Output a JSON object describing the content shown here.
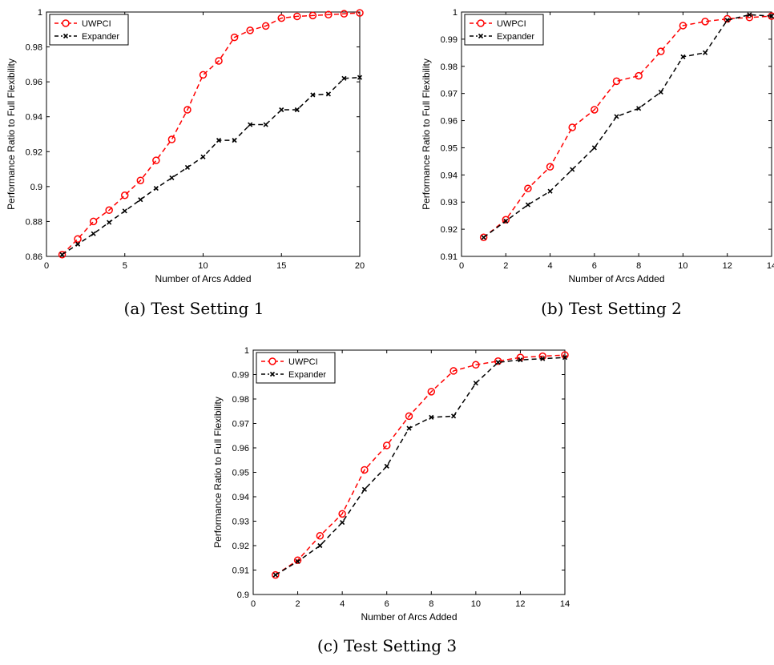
{
  "chart_data": [
    {
      "type": "line",
      "caption": "(a) Test Setting 1",
      "xlabel": "Number of Arcs Added",
      "ylabel": "Performance Ratio to Full Flexibility",
      "xlim": [
        0,
        20
      ],
      "ylim": [
        0.86,
        1.0
      ],
      "xticks": [
        0,
        5,
        10,
        15,
        20
      ],
      "yticks": [
        0.86,
        0.88,
        0.9,
        0.92,
        0.94,
        0.96,
        0.98,
        1.0
      ],
      "xtick_labels": [
        "0",
        "5",
        "10",
        "15",
        "20"
      ],
      "ytick_labels": [
        "0.86",
        "0.88",
        "0.9",
        "0.92",
        "0.94",
        "0.96",
        "0.98",
        "1"
      ],
      "legend_position": "top-left",
      "grid": false,
      "series": [
        {
          "name": "UWPCI",
          "color": "#ff0000",
          "marker": "circle",
          "line": "dashed",
          "x": [
            1,
            2,
            3,
            4,
            5,
            6,
            7,
            8,
            9,
            10,
            11,
            12,
            13,
            14,
            15,
            16,
            17,
            18,
            19,
            20
          ],
          "y": [
            0.861,
            0.87,
            0.88,
            0.8865,
            0.895,
            0.9035,
            0.915,
            0.927,
            0.944,
            0.964,
            0.972,
            0.9855,
            0.9895,
            0.992,
            0.9965,
            0.9975,
            0.998,
            0.9985,
            0.999,
            0.9995
          ]
        },
        {
          "name": "Expander",
          "color": "#000000",
          "marker": "x",
          "line": "dashed",
          "x": [
            1,
            2,
            3,
            4,
            5,
            6,
            7,
            8,
            9,
            10,
            11,
            12,
            13,
            14,
            15,
            16,
            17,
            18,
            19,
            20
          ],
          "y": [
            0.861,
            0.867,
            0.873,
            0.8795,
            0.886,
            0.8925,
            0.899,
            0.905,
            0.911,
            0.917,
            0.9265,
            0.9265,
            0.9355,
            0.9355,
            0.944,
            0.944,
            0.9525,
            0.953,
            0.962,
            0.9625
          ]
        }
      ]
    },
    {
      "type": "line",
      "caption": "(b) Test Setting 2",
      "xlabel": "Number of Arcs Added",
      "ylabel": "Performance Ratio to Full Flexibility",
      "xlim": [
        0,
        14
      ],
      "ylim": [
        0.91,
        1.0
      ],
      "xticks": [
        0,
        2,
        4,
        6,
        8,
        10,
        12,
        14
      ],
      "yticks": [
        0.91,
        0.92,
        0.93,
        0.94,
        0.95,
        0.96,
        0.97,
        0.98,
        0.99,
        1.0
      ],
      "xtick_labels": [
        "0",
        "2",
        "4",
        "6",
        "8",
        "10",
        "12",
        "14"
      ],
      "ytick_labels": [
        "0.91",
        "0.92",
        "0.93",
        "0.94",
        "0.95",
        "0.96",
        "0.97",
        "0.98",
        "0.99",
        "1"
      ],
      "legend_position": "top-left",
      "grid": false,
      "series": [
        {
          "name": "UWPCI",
          "color": "#ff0000",
          "marker": "circle",
          "line": "dashed",
          "x": [
            1,
            2,
            3,
            4,
            5,
            6,
            7,
            8,
            9,
            10,
            11,
            12,
            13,
            14
          ],
          "y": [
            0.917,
            0.9235,
            0.935,
            0.943,
            0.9575,
            0.964,
            0.9745,
            0.9765,
            0.9855,
            0.995,
            0.9965,
            0.9975,
            0.998,
            0.9985
          ]
        },
        {
          "name": "Expander",
          "color": "#000000",
          "marker": "x",
          "line": "dashed",
          "x": [
            1,
            2,
            3,
            4,
            5,
            6,
            7,
            8,
            9,
            10,
            11,
            12,
            13,
            14
          ],
          "y": [
            0.917,
            0.923,
            0.929,
            0.934,
            0.942,
            0.95,
            0.9615,
            0.9645,
            0.9705,
            0.9835,
            0.985,
            0.997,
            0.999,
            0.9985
          ]
        }
      ]
    },
    {
      "type": "line",
      "caption": "(c) Test Setting 3",
      "xlabel": "Number of Arcs Added",
      "ylabel": "Performance Ratio to Full Flexibility",
      "xlim": [
        0,
        14
      ],
      "ylim": [
        0.9,
        1.0
      ],
      "xticks": [
        0,
        2,
        4,
        6,
        8,
        10,
        12,
        14
      ],
      "yticks": [
        0.9,
        0.91,
        0.92,
        0.93,
        0.94,
        0.95,
        0.96,
        0.97,
        0.98,
        0.99,
        1.0
      ],
      "xtick_labels": [
        "0",
        "2",
        "4",
        "6",
        "8",
        "10",
        "12",
        "14"
      ],
      "ytick_labels": [
        "0.9",
        "0.91",
        "0.92",
        "0.93",
        "0.94",
        "0.95",
        "0.96",
        "0.97",
        "0.98",
        "0.99",
        "1"
      ],
      "legend_position": "top-left",
      "grid": false,
      "series": [
        {
          "name": "UWPCI",
          "color": "#ff0000",
          "marker": "circle",
          "line": "dashed",
          "x": [
            1,
            2,
            3,
            4,
            5,
            6,
            7,
            8,
            9,
            10,
            11,
            12,
            13,
            14
          ],
          "y": [
            0.908,
            0.914,
            0.924,
            0.933,
            0.951,
            0.961,
            0.973,
            0.983,
            0.9915,
            0.994,
            0.9955,
            0.997,
            0.9975,
            0.998
          ]
        },
        {
          "name": "Expander",
          "color": "#000000",
          "marker": "x",
          "line": "dashed",
          "x": [
            1,
            2,
            3,
            4,
            5,
            6,
            7,
            8,
            9,
            10,
            11,
            12,
            13,
            14
          ],
          "y": [
            0.908,
            0.9135,
            0.92,
            0.9295,
            0.943,
            0.9525,
            0.968,
            0.9725,
            0.973,
            0.9865,
            0.995,
            0.996,
            0.9965,
            0.997
          ]
        }
      ]
    }
  ]
}
